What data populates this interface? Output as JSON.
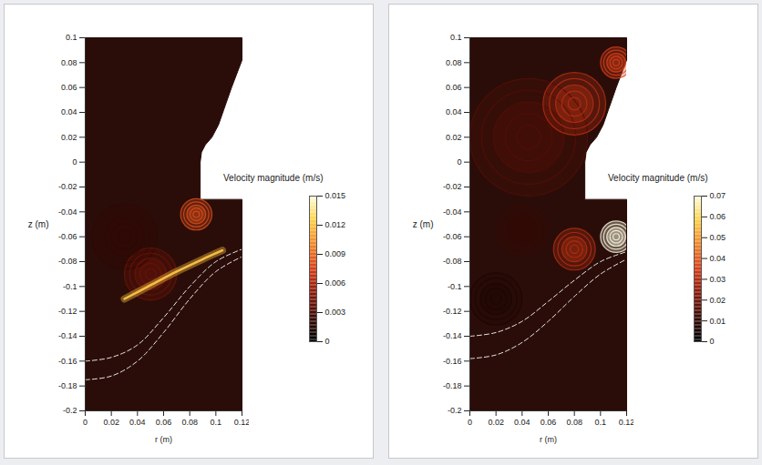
{
  "chart_data": [
    {
      "type": "streamline",
      "xlabel": "r (m)",
      "ylabel": "z (m)",
      "xlim": [
        0,
        0.12
      ],
      "xticks": [
        0,
        0.02,
        0.04,
        0.06,
        0.08,
        0.1,
        0.12
      ],
      "ylim": [
        -0.2,
        0.1
      ],
      "yticks": [
        -0.2,
        -0.18,
        -0.16,
        -0.14,
        -0.12,
        -0.1,
        -0.08,
        -0.06,
        -0.04,
        -0.02,
        0,
        0.02,
        0.04,
        0.06,
        0.08,
        0.1
      ],
      "colorbar": {
        "label": "Velocity magnitude (m/s)",
        "range": [
          0,
          0.015
        ],
        "ticks": [
          0,
          0.003,
          0.006,
          0.009,
          0.012,
          0.015
        ]
      },
      "domain_outline": [
        [
          0,
          -0.2
        ],
        [
          0.12,
          -0.2
        ],
        [
          0.12,
          -0.03
        ],
        [
          0.088,
          -0.03
        ],
        [
          0.088,
          0.0
        ],
        [
          0.089,
          0.008
        ],
        [
          0.092,
          0.014
        ],
        [
          0.097,
          0.02
        ],
        [
          0.102,
          0.03
        ],
        [
          0.106,
          0.042
        ],
        [
          0.112,
          0.06
        ],
        [
          0.12,
          0.082
        ],
        [
          0.12,
          0.1
        ],
        [
          0,
          0.1
        ]
      ],
      "interfaces": [
        [
          [
            0,
            -0.16
          ],
          [
            0.02,
            -0.157
          ],
          [
            0.04,
            -0.147
          ],
          [
            0.06,
            -0.125
          ],
          [
            0.08,
            -0.1
          ],
          [
            0.1,
            -0.08
          ],
          [
            0.12,
            -0.07
          ]
        ],
        [
          [
            0,
            -0.175
          ],
          [
            0.02,
            -0.172
          ],
          [
            0.04,
            -0.16
          ],
          [
            0.06,
            -0.137
          ],
          [
            0.08,
            -0.11
          ],
          [
            0.1,
            -0.088
          ],
          [
            0.12,
            -0.076
          ]
        ]
      ],
      "vortices": [
        {
          "r": 0.085,
          "z": -0.042,
          "radius": 0.012,
          "velocity": 0.008
        },
        {
          "r": 0.05,
          "z": -0.09,
          "radius": 0.02,
          "velocity": 0.004
        },
        {
          "r": 0.03,
          "z": -0.06,
          "radius": 0.025,
          "velocity": 0.002
        }
      ],
      "jets": [
        {
          "points": [
            [
              0.03,
              -0.11
            ],
            [
              0.05,
              -0.099
            ],
            [
              0.07,
              -0.088
            ],
            [
              0.09,
              -0.078
            ],
            [
              0.105,
              -0.071
            ]
          ],
          "velocity": 0.012
        }
      ]
    },
    {
      "type": "streamline",
      "xlabel": "r (m)",
      "ylabel": "z (m)",
      "xlim": [
        0,
        0.12
      ],
      "xticks": [
        0,
        0.02,
        0.04,
        0.06,
        0.08,
        0.1,
        0.12
      ],
      "ylim": [
        -0.2,
        0.1
      ],
      "yticks": [
        -0.2,
        -0.18,
        -0.16,
        -0.14,
        -0.12,
        -0.1,
        -0.08,
        -0.06,
        -0.04,
        -0.02,
        0,
        0.02,
        0.04,
        0.06,
        0.08,
        0.1
      ],
      "colorbar": {
        "label": "Velocity magnitude (m/s)",
        "range": [
          0,
          0.07
        ],
        "ticks": [
          0,
          0.01,
          0.02,
          0.03,
          0.04,
          0.05,
          0.06,
          0.07
        ]
      },
      "domain_outline": [
        [
          0,
          -0.2
        ],
        [
          0.12,
          -0.2
        ],
        [
          0.12,
          -0.03
        ],
        [
          0.088,
          -0.03
        ],
        [
          0.088,
          0.0
        ],
        [
          0.089,
          0.008
        ],
        [
          0.092,
          0.014
        ],
        [
          0.097,
          0.02
        ],
        [
          0.102,
          0.03
        ],
        [
          0.106,
          0.042
        ],
        [
          0.112,
          0.06
        ],
        [
          0.12,
          0.082
        ],
        [
          0.12,
          0.1
        ],
        [
          0,
          0.1
        ]
      ],
      "interfaces": [
        [
          [
            0,
            -0.14
          ],
          [
            0.02,
            -0.137
          ],
          [
            0.04,
            -0.128
          ],
          [
            0.06,
            -0.112
          ],
          [
            0.08,
            -0.095
          ],
          [
            0.1,
            -0.08
          ],
          [
            0.12,
            -0.072
          ]
        ],
        [
          [
            0,
            -0.158
          ],
          [
            0.02,
            -0.155
          ],
          [
            0.04,
            -0.145
          ],
          [
            0.06,
            -0.128
          ],
          [
            0.08,
            -0.108
          ],
          [
            0.1,
            -0.09
          ],
          [
            0.12,
            -0.078
          ]
        ]
      ],
      "vortices": [
        {
          "r": 0.045,
          "z": 0.02,
          "radius": 0.045,
          "velocity": 0.015
        },
        {
          "r": 0.112,
          "z": 0.08,
          "radius": 0.012,
          "velocity": 0.035
        },
        {
          "r": 0.08,
          "z": 0.047,
          "radius": 0.024,
          "velocity": 0.03
        },
        {
          "r": 0.112,
          "z": -0.06,
          "radius": 0.012,
          "velocity": 0.07
        },
        {
          "r": 0.08,
          "z": -0.07,
          "radius": 0.016,
          "velocity": 0.03
        },
        {
          "r": 0.04,
          "z": -0.055,
          "radius": 0.02,
          "velocity": 0.01
        },
        {
          "r": 0.02,
          "z": -0.11,
          "radius": 0.02,
          "velocity": 0.006
        }
      ]
    }
  ]
}
